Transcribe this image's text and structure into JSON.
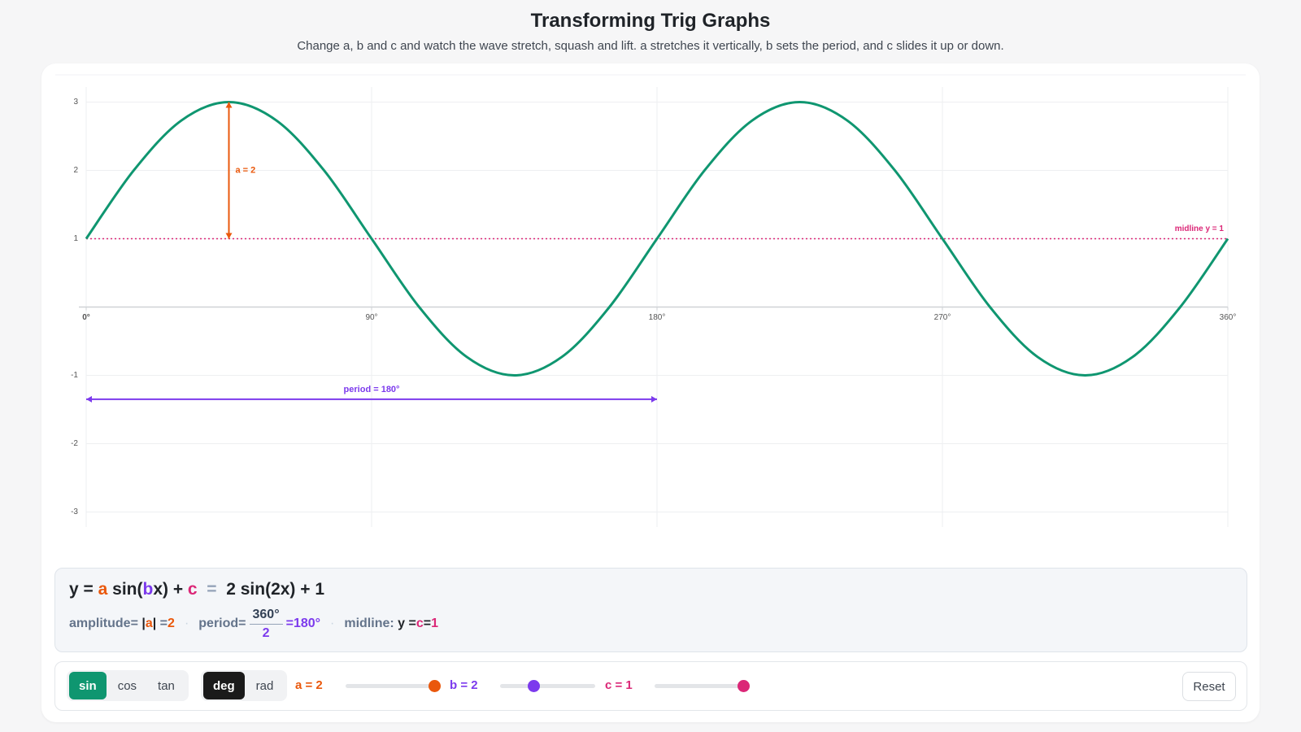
{
  "header": {
    "title": "Transforming Trig Graphs",
    "subtitle": "Change a, b and c and watch the wave stretch, squash and lift. a stretches it vertically, b sets the period, and c slides it up or down."
  },
  "chart_data": {
    "type": "line",
    "x": [
      0,
      15,
      30,
      45,
      60,
      75,
      90,
      105,
      120,
      135,
      150,
      165,
      180,
      195,
      210,
      225,
      240,
      255,
      270,
      285,
      300,
      315,
      330,
      345,
      360
    ],
    "values": [
      1,
      2,
      2.73,
      3,
      2.73,
      2,
      1,
      0,
      -0.73,
      -1,
      -0.73,
      0,
      1,
      2,
      2.73,
      3,
      2.73,
      2,
      1,
      0,
      -0.73,
      -1,
      -0.73,
      0,
      1
    ],
    "color": "#0f9670",
    "xlim": [
      0,
      360
    ],
    "xticks": [
      {
        "value": 0,
        "label": "0°"
      },
      {
        "value": 90,
        "label": "90°"
      },
      {
        "value": 180,
        "label": "180°"
      },
      {
        "value": 270,
        "label": "270°"
      },
      {
        "value": 360,
        "label": "360°"
      }
    ],
    "ylim": [
      -3.22,
      3.22
    ],
    "yticks": [
      -3,
      -2,
      -1,
      1,
      2,
      3
    ],
    "grid": true,
    "annotations": {
      "amplitude": {
        "label": "a = 2",
        "x": 45,
        "y": [
          1,
          3
        ],
        "color": "#ea580c"
      },
      "period": {
        "label": "period = 180°",
        "x": [
          0,
          180
        ],
        "y": -1.35,
        "color": "#7c3aed"
      },
      "midline": {
        "label": "midline y = 1",
        "y": 1,
        "color": "#db2777"
      }
    }
  },
  "formula": {
    "equation": [
      {
        "text": "y = "
      },
      {
        "text": "a",
        "color": "#ea580c"
      },
      {
        "text": " sin("
      },
      {
        "text": "b",
        "color": "#7c3aed"
      },
      {
        "text": "x) + "
      },
      {
        "text": "c",
        "color": "#db2777"
      },
      {
        "text": "  =  ",
        "color": "#94a3b8"
      },
      {
        "text": "2 sin(2x) + 1"
      }
    ],
    "separator": "·",
    "amplitude": [
      {
        "text": "amplitude= "
      },
      {
        "text": "|",
        "color": "#1f2328"
      },
      {
        "text": "a",
        "color": "#ea580c"
      },
      {
        "text": "|",
        "color": "#1f2328"
      },
      {
        "text": " ="
      },
      {
        "text": "2",
        "color": "#ea580c"
      }
    ],
    "period": {
      "label": "period=",
      "numerator": "360°",
      "denominator": "2",
      "denominator_color": "#7c3aed",
      "result": "=180°",
      "result_color": "#7c3aed"
    },
    "midline": [
      {
        "text": "midline: "
      },
      {
        "text": "y =",
        "color": "#1f2328"
      },
      {
        "text": "c",
        "color": "#db2777"
      },
      {
        "text": "=",
        "color": "#1f2328"
      },
      {
        "text": "1",
        "color": "#db2777"
      }
    ]
  },
  "controls": {
    "functions": [
      "sin",
      "cos",
      "tan"
    ],
    "active_function": 0,
    "function_color": "#0f9670",
    "units": [
      "deg",
      "rad"
    ],
    "active_unit": 0,
    "unit_color": "#1a1a1a",
    "sliders": [
      {
        "label": "a = 2",
        "color": "#ea580c"
      },
      {
        "label": "b = 2",
        "color": "#7c3aed"
      },
      {
        "label": "c = 1",
        "color": "#db2777"
      }
    ],
    "reset": "Reset"
  }
}
